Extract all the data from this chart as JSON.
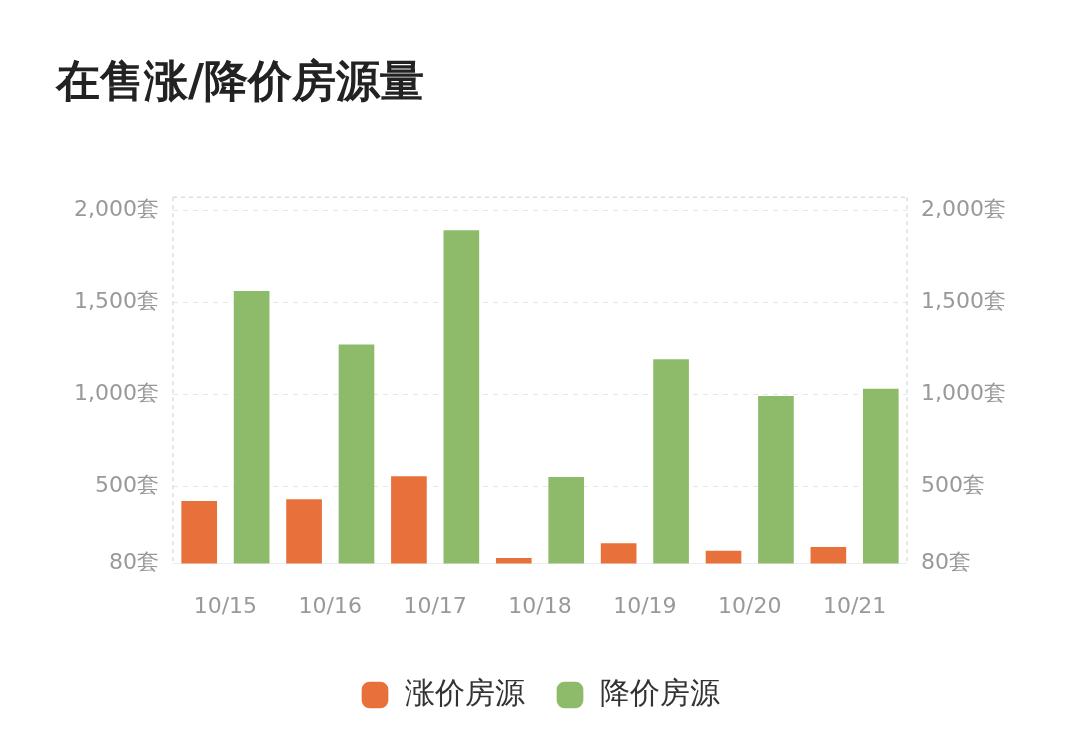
{
  "chart_data": {
    "type": "bar",
    "title": "在售涨/降价房源量",
    "categories": [
      "10/15",
      "10/16",
      "10/17",
      "10/18",
      "10/19",
      "10/20",
      "10/21"
    ],
    "series": [
      {
        "name": "涨价房源",
        "color": "#e8703a",
        "values": [
          420,
          430,
          555,
          110,
          190,
          150,
          170
        ]
      },
      {
        "name": "降价房源",
        "color": "#8dbb6a",
        "values": [
          1560,
          1270,
          1890,
          550,
          1190,
          990,
          1030
        ]
      }
    ],
    "ylim": [
      80,
      2070
    ],
    "yticks": [
      {
        "value": 80,
        "label": "80套"
      },
      {
        "value": 500,
        "label": "500套"
      },
      {
        "value": 1000,
        "label": "1,000套"
      },
      {
        "value": 1500,
        "label": "1,500套"
      },
      {
        "value": 2000,
        "label": "2,000套"
      }
    ],
    "y2lim": [
      80,
      2070
    ],
    "y2ticks": [
      {
        "value": 80,
        "label": "80套"
      },
      {
        "value": 500,
        "label": "500套"
      },
      {
        "value": 1000,
        "label": "1,000套"
      },
      {
        "value": 1500,
        "label": "1,500套"
      },
      {
        "value": 2000,
        "label": "2,000套"
      }
    ],
    "grid": "y",
    "legend": "bottom"
  }
}
